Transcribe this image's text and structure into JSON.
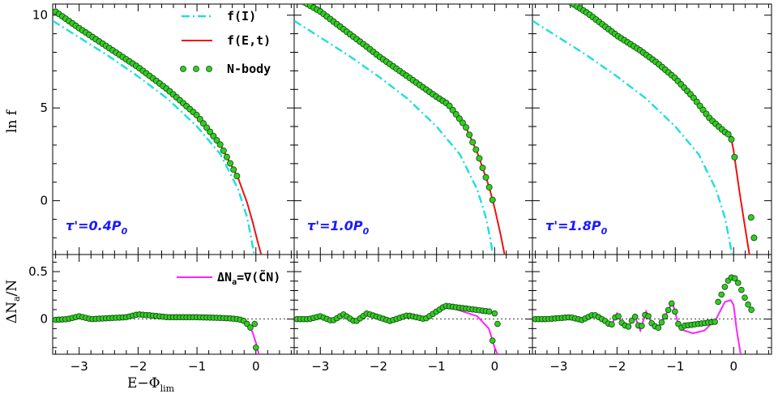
{
  "chart_data": {
    "type": "line",
    "colors": {
      "f_I": "#22dddd",
      "f_Et": "#ee1111",
      "nbody_fill": "#33cc22",
      "delta_fit": "#ff22ff",
      "panel_label": "#1a1aff"
    },
    "shared": {
      "xlabel": "E−Φ",
      "xlabel_sub": "lim",
      "ylabel_top": "ln f",
      "ylabel_bottom": "ΔN",
      "ylabel_bottom_sub": "a",
      "ylabel_bottom_tail": "/N",
      "xlim": [
        -3.45,
        0.65
      ],
      "ylim_top": [
        -2.9,
        10.6
      ],
      "ylim_bottom": [
        -0.37,
        0.68
      ],
      "xticks": [
        -3,
        -2,
        -1,
        0
      ],
      "xtick_labels": [
        "−3",
        "−2",
        "−1",
        "0"
      ],
      "yticks_top": [
        0,
        5,
        10
      ],
      "ytick_labels_top": [
        "0",
        "5",
        "10"
      ],
      "yticks_bottom": [
        0,
        0.5
      ],
      "ytick_labels_bottom": [
        "0",
        "0.5"
      ]
    },
    "legend_top": [
      {
        "key": "f_I",
        "label": "f(I)",
        "style": "dashdot"
      },
      {
        "key": "f_Et",
        "label": "f(E,t)",
        "style": "solid"
      },
      {
        "key": "nbody",
        "label": "N-body",
        "style": "points"
      }
    ],
    "legend_bottom": {
      "label_a": "ΔN",
      "label_sub": "a",
      "label_b": "=∇(C̃N)"
    },
    "panels": [
      {
        "label": "τ'=0.4P",
        "label_sub": "0",
        "f_I": {
          "x": [
            -3.45,
            -3,
            -2.5,
            -2,
            -1.5,
            -1,
            -0.6,
            -0.3,
            -0.15,
            -0.08,
            -0.03
          ],
          "y": [
            9.7,
            8.8,
            7.8,
            6.7,
            5.5,
            4.0,
            2.5,
            0.6,
            -0.9,
            -2.0,
            -2.9
          ]
        },
        "f_Et": {
          "x": [
            -3.45,
            -3,
            -2.5,
            -2,
            -1.5,
            -1,
            -0.6,
            -0.3,
            -0.15,
            -0.05,
            0.03,
            0.09
          ],
          "y": [
            10.3,
            9.3,
            8.25,
            7.2,
            6.0,
            4.6,
            3.0,
            1.2,
            -0.1,
            -1.2,
            -2.2,
            -2.9
          ]
        },
        "nbody": {
          "x0": -3.4,
          "dx": 0.057,
          "n": 55,
          "outliers_x": [],
          "outliers_y": []
        },
        "delta_fit": {
          "x": [
            -3.45,
            -3.2,
            -3.0,
            -2.8,
            -2.5,
            -2.2,
            -2.0,
            -1.8,
            -1.5,
            -1.0,
            -0.5,
            -0.3,
            -0.2,
            -0.1,
            -0.05,
            0.0,
            0.05
          ],
          "y": [
            -0.01,
            0.0,
            0.03,
            0.0,
            0.01,
            0.02,
            0.05,
            0.04,
            0.02,
            0.02,
            0.01,
            0.0,
            -0.02,
            -0.08,
            -0.15,
            -0.25,
            -0.37
          ]
        },
        "delta_pts": {
          "x0": -3.4,
          "dx": 0.057,
          "n": 59,
          "tail_x": [
            -0.02,
            0.0
          ],
          "tail_y": [
            -0.05,
            -0.3
          ]
        }
      },
      {
        "label": "τ'=1.0P",
        "label_sub": "0",
        "f_I": {
          "x": [
            -3.45,
            -3,
            -2.5,
            -2,
            -1.5,
            -1,
            -0.6,
            -0.3,
            -0.15,
            -0.08,
            -0.03
          ],
          "y": [
            9.7,
            8.8,
            7.8,
            6.7,
            5.5,
            4.0,
            2.5,
            0.6,
            -0.9,
            -2.0,
            -2.9
          ]
        },
        "f_Et": {
          "x": [
            -3.45,
            -3,
            -2.5,
            -2.2,
            -2,
            -1.5,
            -1.0,
            -0.8,
            -0.5,
            -0.3,
            -0.1,
            0.0,
            0.1,
            0.17
          ],
          "y": [
            11.0,
            10.2,
            9.0,
            8.3,
            7.8,
            6.7,
            5.6,
            5.2,
            4.0,
            2.6,
            0.8,
            -0.4,
            -1.8,
            -2.9
          ]
        },
        "nbody": {
          "x0": -3.4,
          "dx": 0.057,
          "n": 60,
          "outliers_x": [],
          "outliers_y": []
        },
        "delta_fit": {
          "x": [
            -3.45,
            -3.2,
            -3.0,
            -2.8,
            -2.6,
            -2.4,
            -2.2,
            -2.0,
            -1.8,
            -1.5,
            -1.2,
            -1.0,
            -0.85,
            -0.6,
            -0.3,
            -0.1,
            0.0,
            0.05
          ],
          "y": [
            0.0,
            0.0,
            0.03,
            -0.02,
            0.05,
            -0.03,
            0.06,
            0.02,
            -0.02,
            0.04,
            0.0,
            0.08,
            0.14,
            0.09,
            0.03,
            -0.1,
            -0.3,
            -0.37
          ]
        },
        "delta_pts": {
          "x0": -3.4,
          "dx": 0.057,
          "n": 60,
          "tail_x": [
            0.0,
            0.05
          ],
          "tail_y": [
            0.06,
            -0.05
          ]
        }
      },
      {
        "label": "τ'=1.8P",
        "label_sub": "0",
        "f_I": {
          "x": [
            -3.45,
            -3,
            -2.5,
            -2,
            -1.5,
            -1,
            -0.6,
            -0.3,
            -0.15,
            -0.08,
            -0.03
          ],
          "y": [
            9.7,
            8.8,
            7.8,
            6.7,
            5.5,
            4.0,
            2.5,
            0.6,
            -0.9,
            -2.0,
            -2.9
          ]
        },
        "f_Et": {
          "x": [
            -2.9,
            -2.5,
            -2.0,
            -1.6,
            -1.3,
            -1.0,
            -0.7,
            -0.4,
            -0.15,
            -0.05,
            0.0,
            0.1,
            0.2,
            0.27
          ],
          "y": [
            10.9,
            10.1,
            8.9,
            8.1,
            7.4,
            6.6,
            5.6,
            4.4,
            3.7,
            3.5,
            2.7,
            0.5,
            -1.5,
            -2.9
          ]
        },
        "nbody": {
          "x0": -2.9,
          "dx": 0.054,
          "n": 55,
          "outliers_x": [
            0.3,
            0.35
          ],
          "outliers_y": [
            -0.9,
            -2.0
          ]
        },
        "delta_fit": {
          "x": [
            -3.45,
            -3.2,
            -3.0,
            -2.8,
            -2.6,
            -2.4,
            -2.2,
            -2.1,
            -2.0,
            -1.9,
            -1.8,
            -1.7,
            -1.6,
            -1.5,
            -1.4,
            -1.3,
            -1.2,
            -1.05,
            -0.95,
            -0.85,
            -0.7,
            -0.5,
            -0.3,
            -0.15,
            -0.05,
            0.0,
            0.05,
            0.12
          ],
          "y": [
            0.0,
            0.0,
            0.01,
            0.02,
            -0.01,
            0.05,
            -0.02,
            -0.07,
            0.06,
            -0.06,
            -0.08,
            0.04,
            -0.12,
            0.08,
            -0.05,
            -0.1,
            0.0,
            0.18,
            -0.05,
            -0.12,
            -0.15,
            -0.12,
            0.0,
            0.18,
            0.2,
            0.15,
            -0.1,
            -0.37
          ]
        },
        "delta_pts": {
          "x0": -3.4,
          "dx": 0.057,
          "n": 66,
          "tail_x": [],
          "tail_y": []
        }
      }
    ]
  }
}
